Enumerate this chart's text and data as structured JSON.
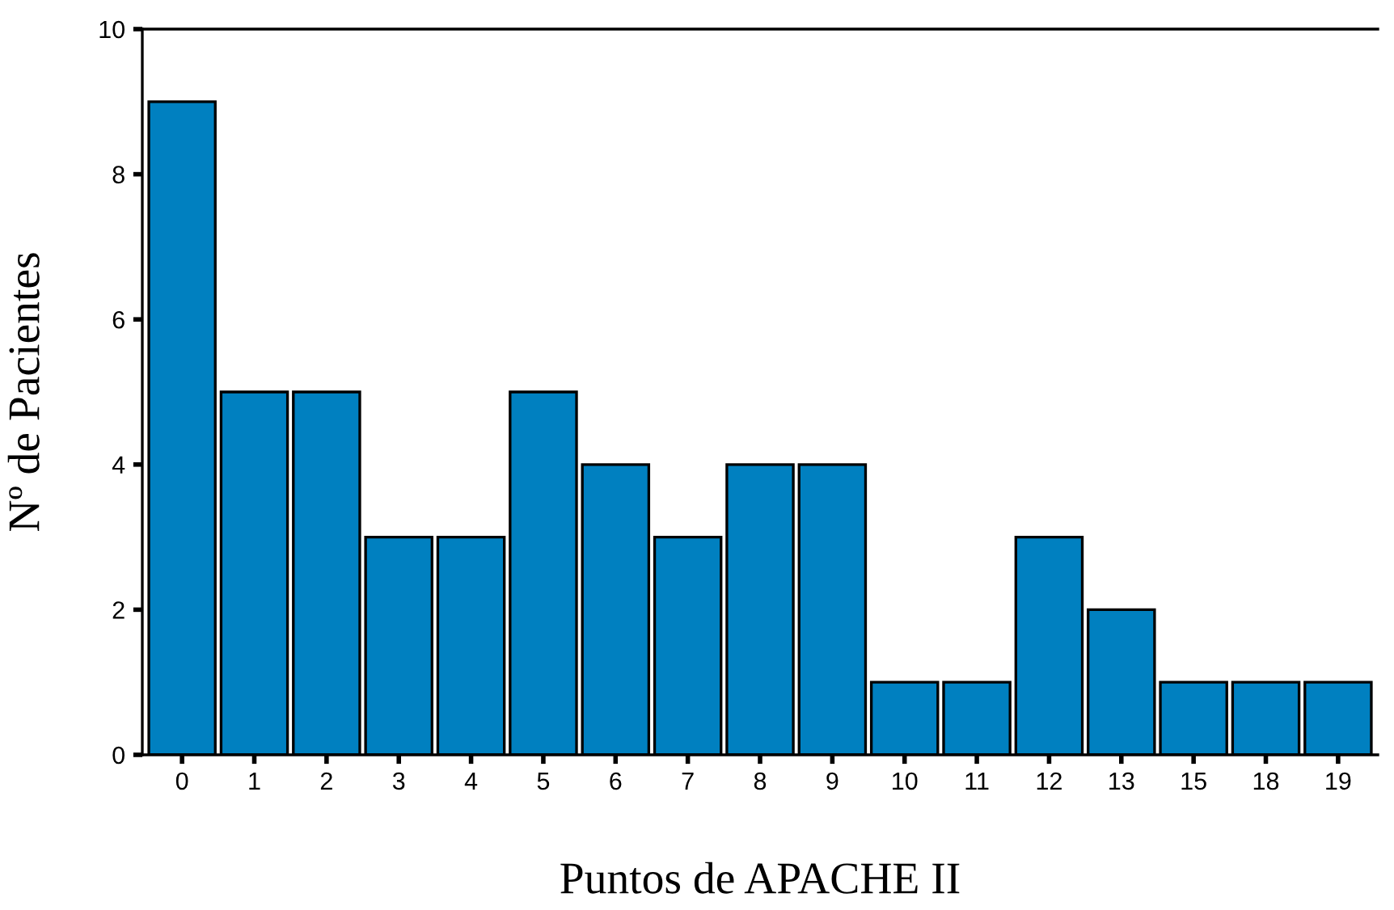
{
  "chart_data": {
    "type": "bar",
    "xlabel": "Puntos de APACHE II",
    "ylabel": "Nº de Pacientes",
    "categories": [
      "0",
      "1",
      "2",
      "3",
      "4",
      "5",
      "6",
      "7",
      "8",
      "9",
      "10",
      "11",
      "12",
      "13",
      "15",
      "18",
      "19"
    ],
    "values": [
      9,
      5,
      5,
      3,
      3,
      5,
      4,
      3,
      4,
      4,
      1,
      1,
      3,
      2,
      1,
      1,
      1
    ],
    "color": "#0080c0",
    "ylim": [
      0,
      10
    ],
    "yticks": [
      0,
      2,
      4,
      6,
      8,
      10
    ],
    "grid": false,
    "legend": false
  }
}
